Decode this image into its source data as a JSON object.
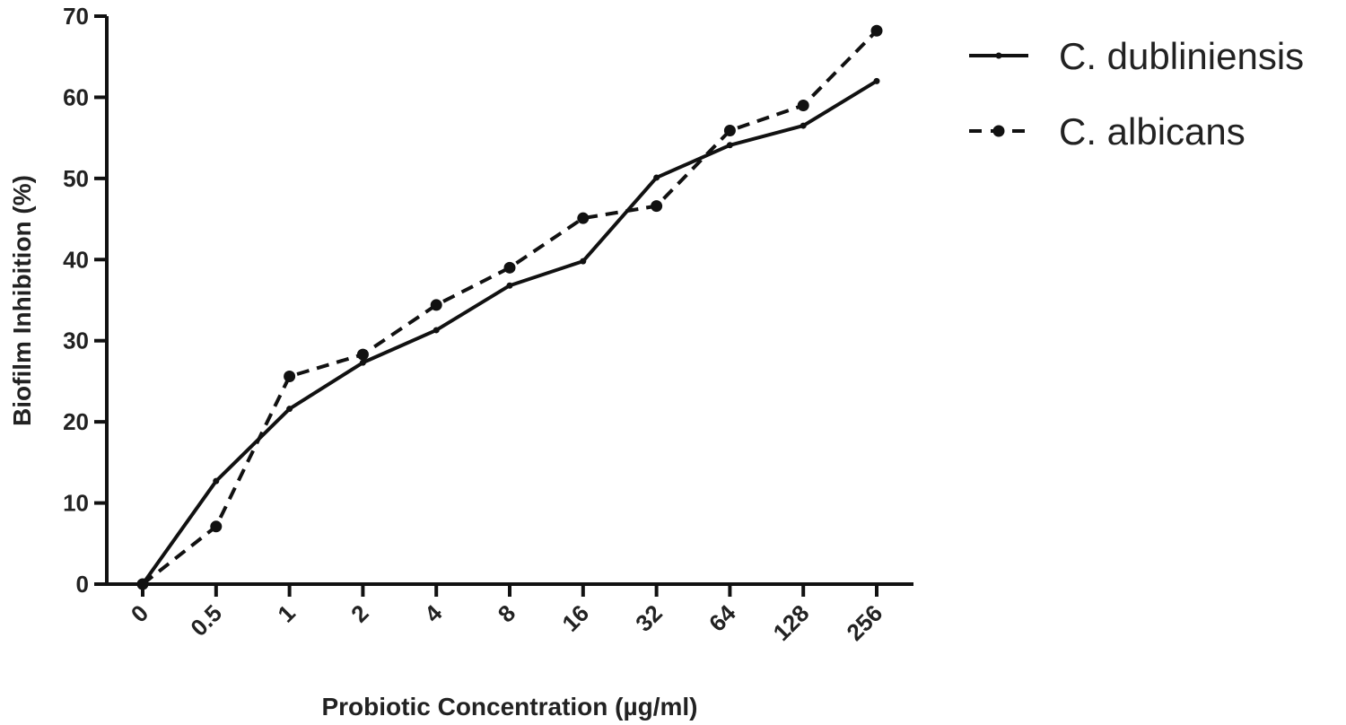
{
  "chart_data": {
    "type": "line",
    "categories": [
      "0",
      "0.5",
      "1",
      "2",
      "4",
      "8",
      "16",
      "32",
      "64",
      "128",
      "256"
    ],
    "series": [
      {
        "name": "C. dubliniensis",
        "style": "solid",
        "marker": "small-circle",
        "values": [
          0,
          12.7,
          21.6,
          27.3,
          31.3,
          36.8,
          39.8,
          50.1,
          54.1,
          56.5,
          62.0
        ]
      },
      {
        "name": "C. albicans",
        "style": "dashed",
        "marker": "circle",
        "values": [
          0,
          7.1,
          25.6,
          28.3,
          34.4,
          39.0,
          45.1,
          46.6,
          55.9,
          59.0,
          68.2
        ]
      }
    ],
    "xlabel": "Probiotic Concentration (µg/ml)",
    "ylabel": "Biofilm Inhibition (%)",
    "ylim": [
      0,
      70
    ],
    "yticks": [
      0,
      10,
      20,
      30,
      40,
      50,
      60,
      70
    ],
    "grid": false,
    "legend_position": "top-right",
    "color": "#111111"
  }
}
